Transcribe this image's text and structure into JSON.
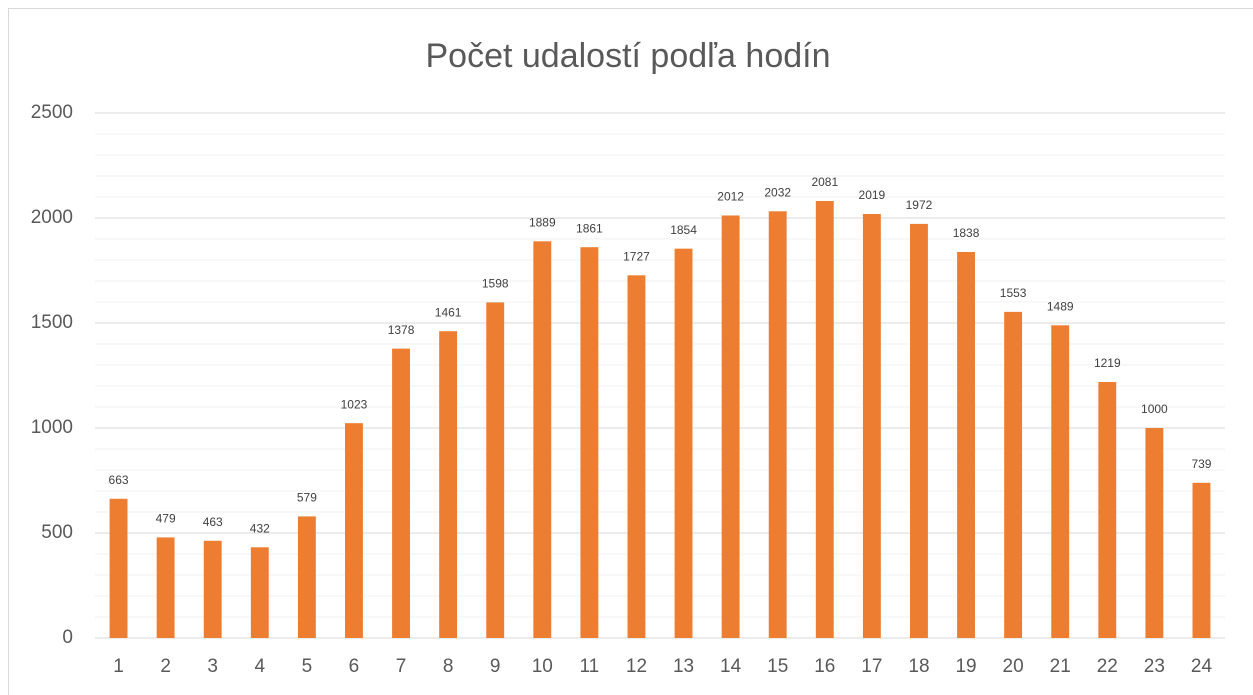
{
  "chart_data": {
    "type": "bar",
    "title": "Počet udalostí podľa hodín",
    "categories": [
      "1",
      "2",
      "3",
      "4",
      "5",
      "6",
      "7",
      "8",
      "9",
      "10",
      "11",
      "12",
      "13",
      "14",
      "15",
      "16",
      "17",
      "18",
      "19",
      "20",
      "21",
      "22",
      "23",
      "24"
    ],
    "values": [
      663,
      479,
      463,
      432,
      579,
      1023,
      1378,
      1461,
      1598,
      1889,
      1861,
      1727,
      1854,
      2012,
      2032,
      2081,
      2019,
      1972,
      1838,
      1553,
      1489,
      1219,
      1000,
      739
    ],
    "color": "#ed7d31",
    "ylim": [
      0,
      2500
    ],
    "yticks": [
      0,
      500,
      1000,
      1500,
      2000,
      2500
    ],
    "minor_yticks": [
      100,
      200,
      300,
      400,
      600,
      700,
      800,
      900,
      1100,
      1200,
      1300,
      1400,
      1600,
      1700,
      1800,
      1900,
      2100,
      2200,
      2300,
      2400
    ],
    "grid": true,
    "data_labels": true
  }
}
